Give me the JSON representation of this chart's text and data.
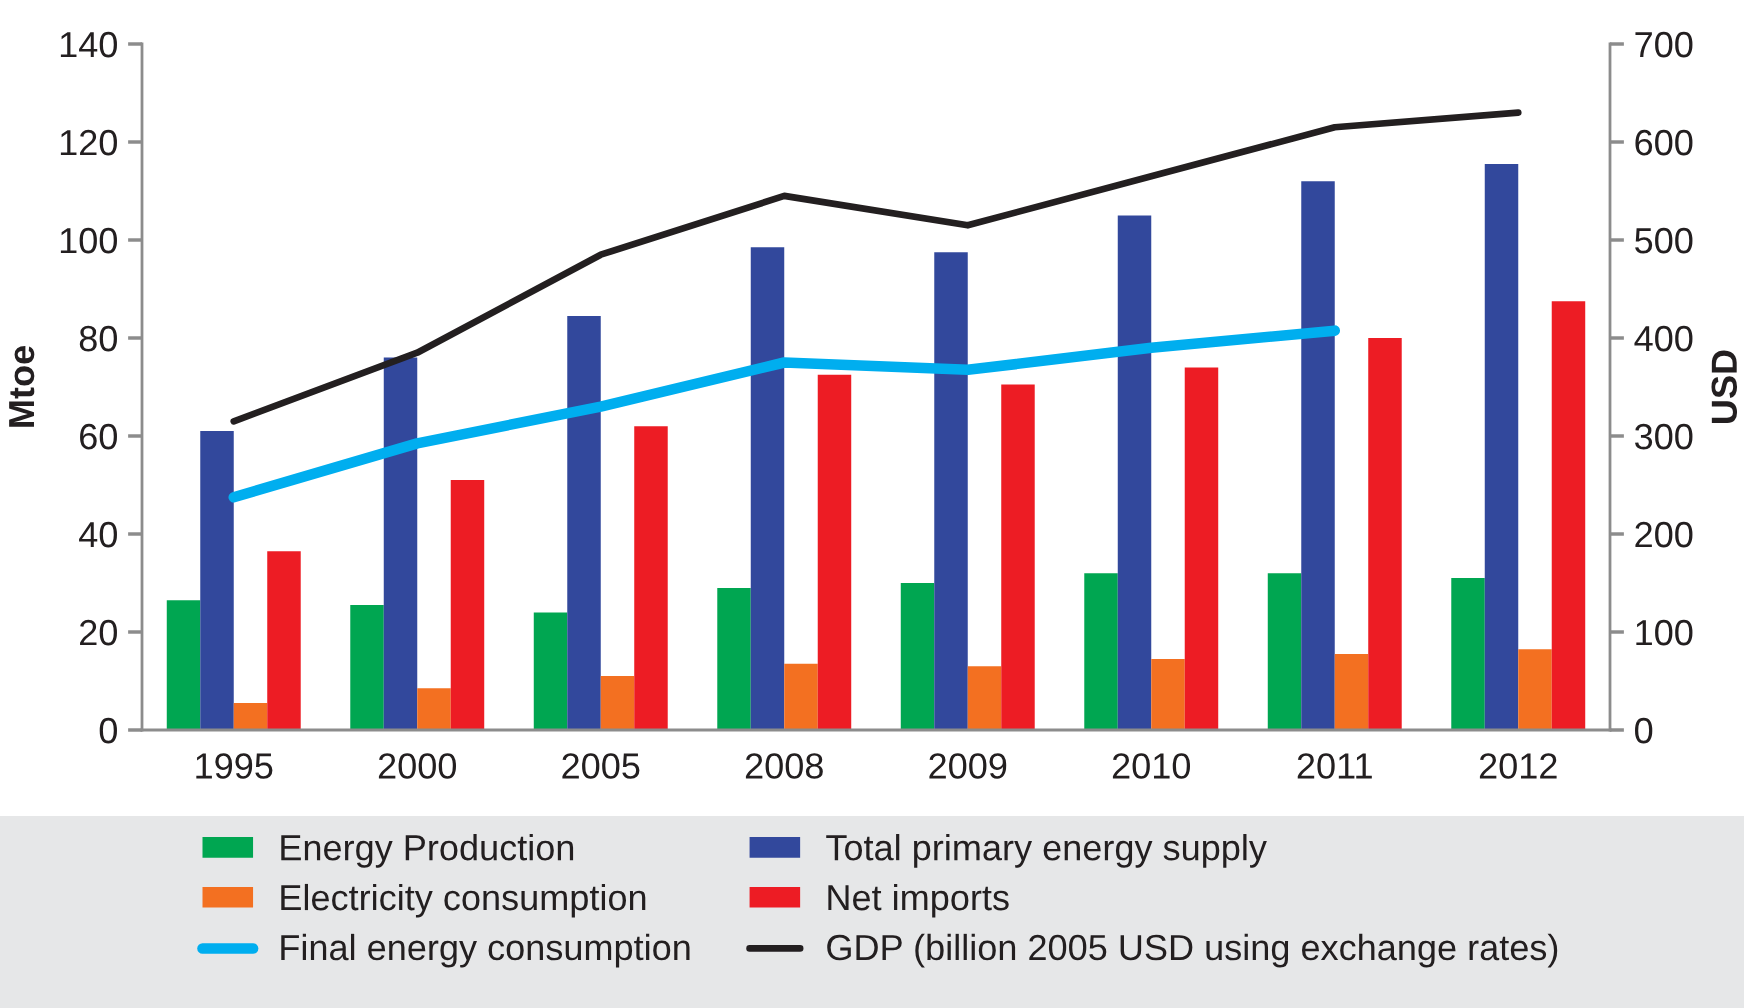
{
  "chart_data": {
    "type": "bar",
    "categories": [
      "1995",
      "2000",
      "2005",
      "2008",
      "2009",
      "2010",
      "2011",
      "2012"
    ],
    "series": [
      {
        "name": "Energy Production",
        "color": "#00a651",
        "values": [
          26.5,
          25.5,
          24,
          29,
          30,
          32,
          32,
          31
        ]
      },
      {
        "name": "Total primary energy supply",
        "color": "#32489c",
        "values": [
          61,
          76,
          84.5,
          98.5,
          97.5,
          105,
          112,
          115.5
        ]
      },
      {
        "name": "Electricity consumption",
        "color": "#f37021",
        "values": [
          5.5,
          8.5,
          11,
          13.5,
          13,
          14.5,
          15.5,
          16.5
        ]
      },
      {
        "name": "Net imports",
        "color": "#ed1c24",
        "values": [
          36.5,
          51,
          62,
          72.5,
          70.5,
          74,
          80,
          87.5
        ]
      },
      {
        "name": "Final energy consumption",
        "type": "line",
        "color": "#00aeef",
        "values": [
          47.5,
          58.5,
          66,
          75,
          73.5,
          78,
          81.5,
          null
        ]
      },
      {
        "name": "GDP (billion 2005 USD using exchange rates)",
        "type": "line",
        "axis": "y2",
        "color": "#231f20",
        "values": [
          315,
          385,
          485,
          545,
          515,
          565,
          615,
          630
        ]
      }
    ],
    "ylabel": "Mtoe",
    "y2label": "USD",
    "ylim": [
      0,
      140
    ],
    "yticks": [
      0,
      20,
      40,
      60,
      80,
      100,
      120,
      140
    ],
    "y2lim": [
      0,
      700
    ],
    "y2ticks": [
      0,
      100,
      200,
      300,
      400,
      500,
      600,
      700
    ],
    "legend": "bottom"
  }
}
